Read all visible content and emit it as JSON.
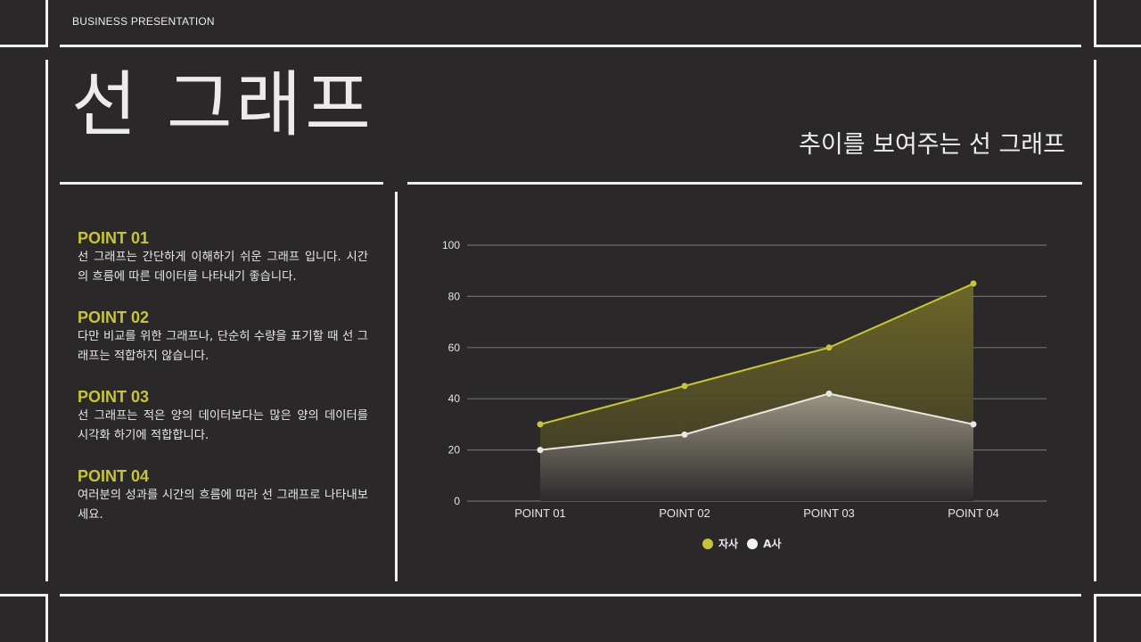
{
  "header": {
    "eyebrow": "BUSINESS PRESENTATION",
    "title": "선 그래프",
    "subtitle": "추이를 보여주는 선 그래프"
  },
  "points": [
    {
      "heading": "POINT 01",
      "body": "선 그래프는 간단하게 이해하기 쉬운 그래프 입니다. 시간의 흐름에 따른 데이터를 나타내기 좋습니다."
    },
    {
      "heading": "POINT 02",
      "body": "다만 비교를 위한 그래프나, 단순히 수량을 표기할 때 선 그래프는 적합하지 않습니다."
    },
    {
      "heading": "POINT 03",
      "body": "선 그래프는 적은 양의 데이터보다는 많은 양의 데이터를 시각화 하기에 적합합니다."
    },
    {
      "heading": "POINT 04",
      "body": "여러분의 성과를 시간의 흐름에 따라 선 그래프로 나타내보세요."
    }
  ],
  "colors": {
    "background": "#2a2829",
    "accent": "#c8c43a",
    "line": "#f0efef",
    "series_a": "#e8e6e0"
  },
  "chart_data": {
    "type": "area",
    "title": "",
    "xlabel": "",
    "ylabel": "",
    "categories": [
      "POINT 01",
      "POINT 02",
      "POINT 03",
      "POINT 04"
    ],
    "series": [
      {
        "name": "자사",
        "values": [
          30,
          45,
          60,
          85
        ],
        "color": "#c8c43a"
      },
      {
        "name": "A사",
        "values": [
          20,
          26,
          42,
          30
        ],
        "color": "#e8e6e0"
      }
    ],
    "ylim": [
      0,
      100
    ],
    "yticks": [
      0,
      20,
      40,
      60,
      80,
      100
    ],
    "grid": true,
    "legend_position": "bottom"
  }
}
